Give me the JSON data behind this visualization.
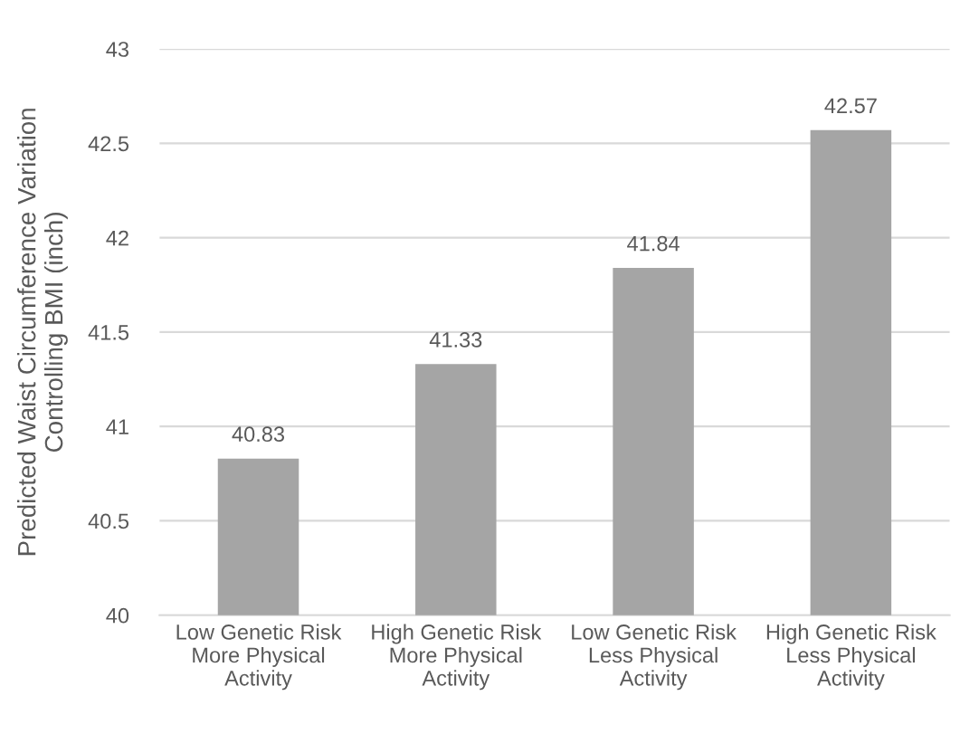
{
  "chart_data": {
    "type": "bar",
    "ylabel": "Predicted Waist Circumference Variation\nControlling BMI (inch)",
    "categories": [
      "Low Genetic Risk\nMore Physical\nActivity",
      "High Genetic Risk\nMore Physical\nActivity",
      "Low Genetic Risk\nLess Physical\nActivity",
      "High Genetic Risk\nLess Physical\nActivity"
    ],
    "values": [
      40.83,
      41.33,
      41.84,
      42.57
    ],
    "color": "#a5a5a5",
    "ylim": [
      40,
      43
    ],
    "yticks": [
      40,
      40.5,
      41,
      41.5,
      42,
      42.5,
      43
    ],
    "grid": "y",
    "data_labels": true,
    "legend": false
  }
}
